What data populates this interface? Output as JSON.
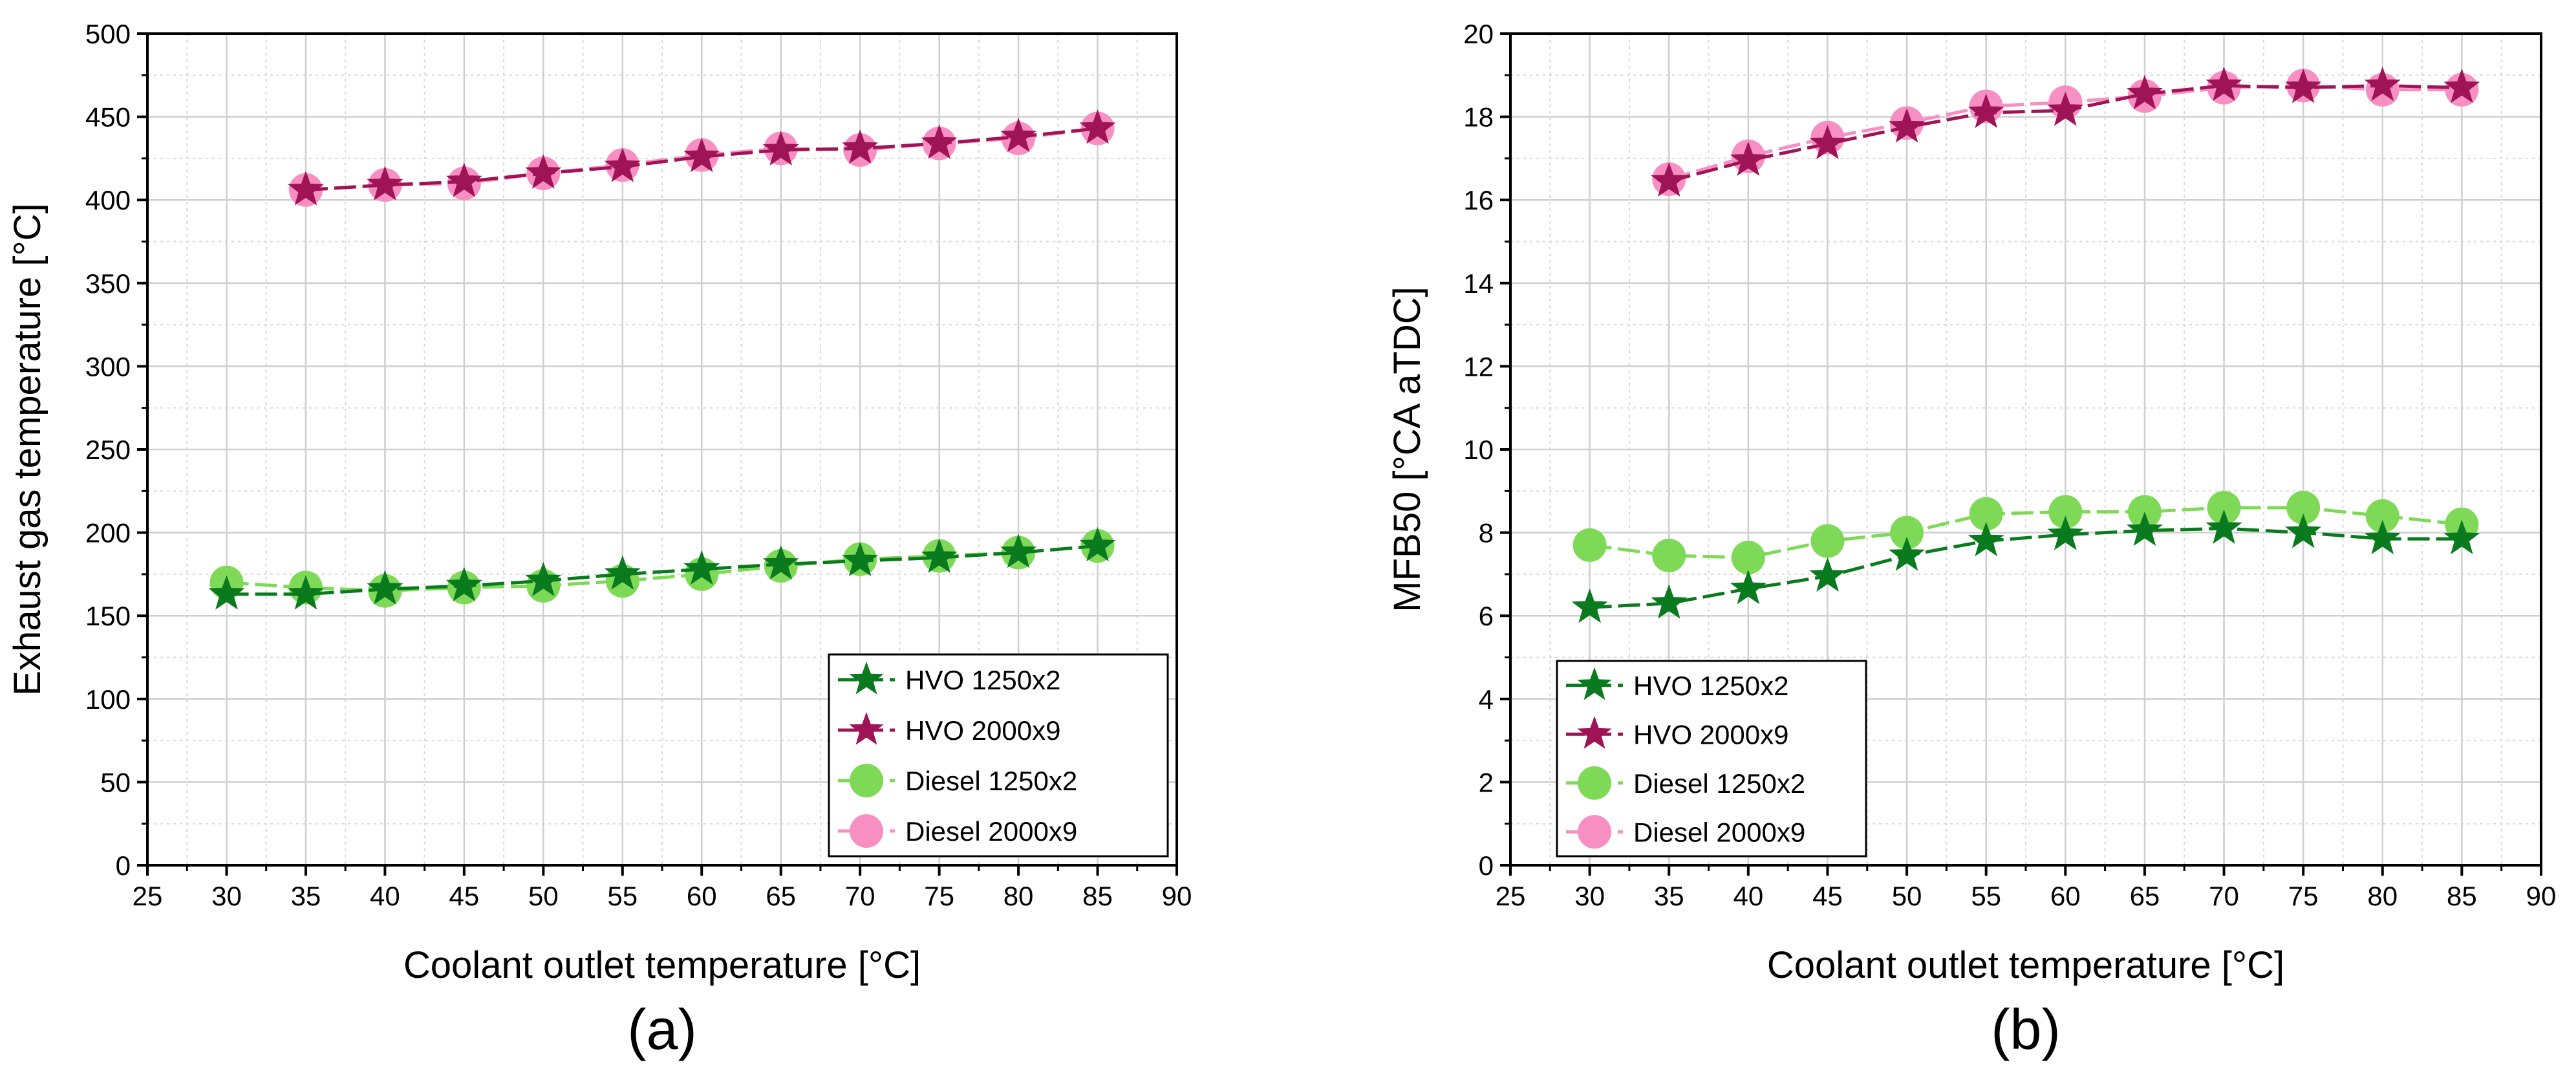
{
  "chart_data": [
    {
      "type": "line",
      "panel_label": "(a)",
      "title": "",
      "xlabel": "Coolant outlet temperature [°C]",
      "ylabel": "Exhaust gas temperature [°C]",
      "xlim": [
        25,
        90
      ],
      "ylim": [
        0,
        500
      ],
      "xticks": [
        25,
        30,
        35,
        40,
        45,
        50,
        55,
        60,
        65,
        70,
        75,
        80,
        85,
        90
      ],
      "yticks": [
        0,
        50,
        100,
        150,
        200,
        250,
        300,
        350,
        400,
        450,
        500
      ],
      "grid": true,
      "legend_position": "bottom-right",
      "series": [
        {
          "name": "HVO 1250x2",
          "marker": "star",
          "color": "#0a7a1e",
          "x": [
            30,
            35,
            40,
            45,
            50,
            55,
            60,
            65,
            70,
            75,
            80,
            85
          ],
          "y": [
            163,
            163,
            166,
            168,
            171,
            175,
            178,
            181,
            183,
            185,
            188,
            192
          ]
        },
        {
          "name": "HVO 2000x9",
          "marker": "star",
          "color": "#9e1457",
          "x": [
            35,
            40,
            45,
            50,
            55,
            60,
            65,
            70,
            75,
            80,
            85
          ],
          "y": [
            406,
            409,
            411,
            416,
            420,
            426,
            430,
            431,
            434,
            438,
            443
          ]
        },
        {
          "name": "Diesel 1250x2",
          "marker": "circle",
          "color": "#7ed957",
          "x": [
            30,
            35,
            40,
            45,
            50,
            55,
            60,
            65,
            70,
            75,
            80,
            85
          ],
          "y": [
            170,
            167,
            165,
            167,
            168,
            171,
            175,
            180,
            184,
            186,
            188,
            192
          ]
        },
        {
          "name": "Diesel 2000x9",
          "marker": "circle",
          "color": "#f78fc2",
          "x": [
            35,
            40,
            45,
            50,
            55,
            60,
            65,
            70,
            75,
            80,
            85
          ],
          "y": [
            406,
            409,
            410,
            416,
            421,
            427,
            431,
            430,
            434,
            437,
            443
          ]
        }
      ]
    },
    {
      "type": "line",
      "panel_label": "(b)",
      "title": "",
      "xlabel": "Coolant outlet temperature [°C]",
      "ylabel": "MFB50 [°CA aTDC]",
      "xlim": [
        25,
        90
      ],
      "ylim": [
        0,
        20
      ],
      "xticks": [
        25,
        30,
        35,
        40,
        45,
        50,
        55,
        60,
        65,
        70,
        75,
        80,
        85,
        90
      ],
      "yticks": [
        0,
        2,
        4,
        6,
        8,
        10,
        12,
        14,
        16,
        18,
        20
      ],
      "grid": true,
      "legend_position": "bottom-left",
      "series": [
        {
          "name": "HVO 1250x2",
          "marker": "star",
          "color": "#0a7a1e",
          "x": [
            30,
            35,
            40,
            45,
            50,
            55,
            60,
            65,
            70,
            75,
            80,
            85
          ],
          "y": [
            6.2,
            6.3,
            6.65,
            6.95,
            7.45,
            7.8,
            7.95,
            8.05,
            8.1,
            8.0,
            7.85,
            7.85
          ]
        },
        {
          "name": "HVO 2000x9",
          "marker": "star",
          "color": "#9e1457",
          "x": [
            35,
            40,
            45,
            50,
            55,
            60,
            65,
            70,
            75,
            80,
            85
          ],
          "y": [
            16.45,
            16.95,
            17.35,
            17.75,
            18.1,
            18.15,
            18.55,
            18.75,
            18.7,
            18.75,
            18.7
          ]
        },
        {
          "name": "Diesel 1250x2",
          "marker": "circle",
          "color": "#7ed957",
          "x": [
            30,
            35,
            40,
            45,
            50,
            55,
            60,
            65,
            70,
            75,
            80,
            85
          ],
          "y": [
            7.7,
            7.45,
            7.4,
            7.8,
            8.0,
            8.45,
            8.5,
            8.5,
            8.6,
            8.6,
            8.4,
            8.2
          ]
        },
        {
          "name": "Diesel 2000x9",
          "marker": "circle",
          "color": "#f78fc2",
          "x": [
            35,
            40,
            45,
            50,
            55,
            60,
            65,
            70,
            75,
            80,
            85
          ],
          "y": [
            16.5,
            17.05,
            17.5,
            17.85,
            18.25,
            18.35,
            18.5,
            18.7,
            18.75,
            18.65,
            18.65
          ]
        }
      ]
    }
  ]
}
